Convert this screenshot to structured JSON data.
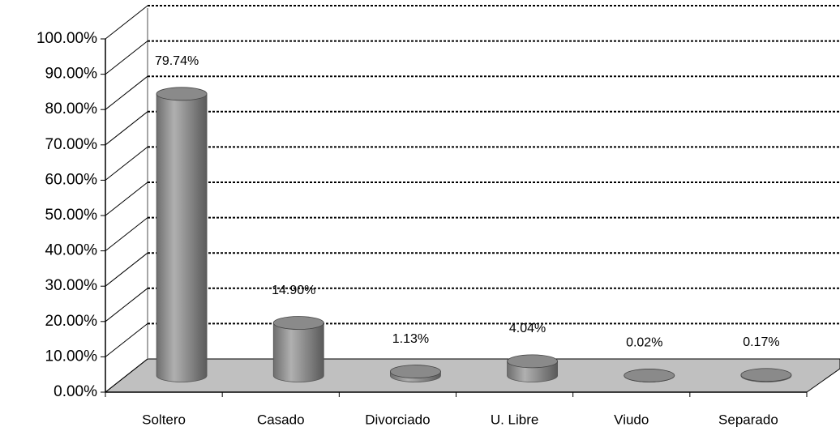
{
  "chart_data": {
    "type": "bar3d",
    "categories": [
      "Soltero",
      "Casado",
      "Divorciado",
      "U. Libre",
      "Viudo",
      "Separado"
    ],
    "values": [
      79.74,
      14.9,
      1.13,
      4.04,
      0.02,
      0.17
    ],
    "value_labels": [
      "79.74%",
      "14.90%",
      "1.13%",
      "4.04%",
      "0.02%",
      "0.17%"
    ],
    "color": "#8c8c8c",
    "ylim": [
      0,
      100
    ],
    "yticks": [
      {
        "value": 0,
        "label": "0.00%"
      },
      {
        "value": 10,
        "label": "10.00%"
      },
      {
        "value": 20,
        "label": "20.00%"
      },
      {
        "value": 30,
        "label": "30.00%"
      },
      {
        "value": 40,
        "label": "40.00%"
      },
      {
        "value": 50,
        "label": "50.00%"
      },
      {
        "value": 60,
        "label": "60.00%"
      },
      {
        "value": 70,
        "label": "70.00%"
      },
      {
        "value": 80,
        "label": "80.00%"
      },
      {
        "value": 90,
        "label": "90.00%"
      },
      {
        "value": 100,
        "label": "100.00%"
      }
    ],
    "grid": true
  }
}
